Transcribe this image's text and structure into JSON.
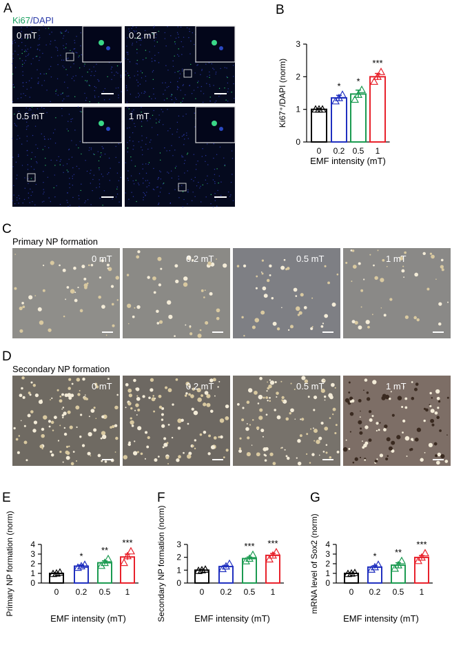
{
  "image_panels": {
    "A": {
      "letter": "A",
      "stain": [
        "Ki67",
        "/DAPI"
      ],
      "images": [
        "0 mT",
        "0.2 mT",
        "0.5 mT",
        "1 mT"
      ]
    },
    "C": {
      "letter": "C",
      "title": "Primary NP formation",
      "images": [
        "0 mT",
        "0.2 mT",
        "0.5 mT",
        "1 mT"
      ]
    },
    "D": {
      "letter": "D",
      "title": "Secondary NP formation",
      "images": [
        "0 mT",
        "0.2 mT",
        "0.5 mT",
        "1 mT"
      ]
    }
  },
  "chart_data": [
    {
      "letter": "B",
      "type": "bar",
      "ylabel": "Ki67⁺/DAPI (norm)",
      "xlabel": "EMF intensity  (mT)",
      "categories": [
        "0",
        "0.2",
        "0.5",
        "1"
      ],
      "values": [
        1.0,
        1.35,
        1.47,
        2.0
      ],
      "errors": [
        0.02,
        0.08,
        0.12,
        0.1
      ],
      "points": [
        [
          1.0,
          1.0,
          1.0
        ],
        [
          1.25,
          1.35,
          1.45
        ],
        [
          1.3,
          1.45,
          1.6
        ],
        [
          1.85,
          2.0,
          2.15
        ]
      ],
      "annotations": [
        null,
        "*",
        "*",
        "***"
      ],
      "colors": [
        "#000000",
        "#1f2fbf",
        "#1a9a50",
        "#e8202a"
      ],
      "ylim": [
        0,
        3
      ],
      "yticks": [
        0,
        1,
        2,
        3
      ]
    },
    {
      "letter": "E",
      "type": "bar",
      "ylabel": "Primary NP formation (norm)",
      "xlabel": "EMF intensity  (mT)",
      "categories": [
        "0",
        "0.2",
        "0.5",
        "1"
      ],
      "values": [
        1.0,
        1.75,
        2.1,
        2.7
      ],
      "errors": [
        0.05,
        0.12,
        0.2,
        0.3
      ],
      "points": [
        [
          0.95,
          1.0,
          1.1
        ],
        [
          1.6,
          1.75,
          1.9
        ],
        [
          1.8,
          2.1,
          2.5
        ],
        [
          2.1,
          2.8,
          3.3
        ]
      ],
      "annotations": [
        null,
        "*",
        "**",
        "***"
      ],
      "colors": [
        "#000000",
        "#1f2fbf",
        "#1a9a50",
        "#e8202a"
      ],
      "ylim": [
        0,
        4
      ],
      "yticks": [
        0,
        1,
        2,
        3,
        4
      ]
    },
    {
      "letter": "F",
      "type": "bar",
      "ylabel": "Secondary NP formation (norm)",
      "xlabel": "EMF intensity  (mT)",
      "categories": [
        "0",
        "0.2",
        "0.5",
        "1"
      ],
      "values": [
        1.0,
        1.28,
        1.9,
        2.15
      ],
      "errors": [
        0.05,
        0.1,
        0.12,
        0.15
      ],
      "points": [
        [
          0.95,
          1.0,
          1.05
        ],
        [
          1.1,
          1.3,
          1.5
        ],
        [
          1.7,
          1.9,
          2.2
        ],
        [
          1.85,
          2.15,
          2.4
        ]
      ],
      "annotations": [
        null,
        null,
        "***",
        "***"
      ],
      "colors": [
        "#000000",
        "#1f2fbf",
        "#1a9a50",
        "#e8202a"
      ],
      "ylim": [
        0,
        3
      ],
      "yticks": [
        0,
        1,
        2,
        3
      ]
    },
    {
      "letter": "G",
      "type": "bar",
      "ylabel": "mRNA level of Sox2 (norm)",
      "xlabel": "EMF intensity  (mT)",
      "categories": [
        "0",
        "0.2",
        "0.5",
        "1"
      ],
      "values": [
        1.0,
        1.65,
        1.85,
        2.65
      ],
      "errors": [
        0.05,
        0.15,
        0.25,
        0.2
      ],
      "points": [
        [
          0.95,
          1.0,
          1.05
        ],
        [
          1.4,
          1.65,
          1.9
        ],
        [
          1.5,
          1.85,
          2.3
        ],
        [
          2.3,
          2.65,
          3.1
        ]
      ],
      "annotations": [
        null,
        "*",
        "**",
        "***"
      ],
      "colors": [
        "#000000",
        "#1f2fbf",
        "#1a9a50",
        "#e8202a"
      ],
      "ylim": [
        0,
        4
      ],
      "yticks": [
        0,
        1,
        2,
        3,
        4
      ]
    }
  ]
}
